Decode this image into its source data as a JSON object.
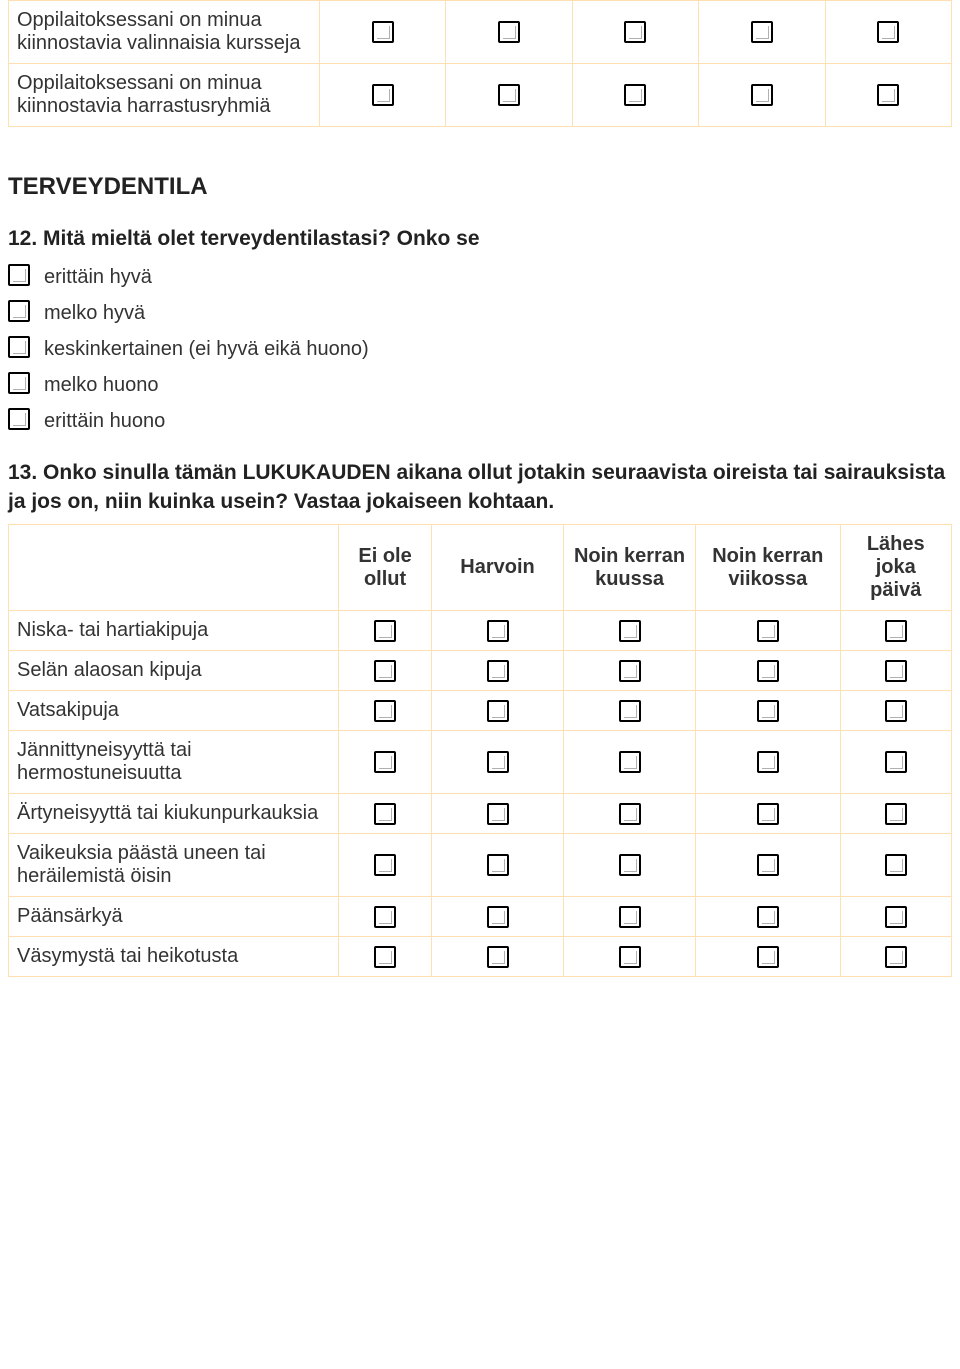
{
  "colors": {
    "border": "#ffe0b3",
    "text": "#333333",
    "heading": "#222222",
    "bg": "#ffffff"
  },
  "topTable": {
    "rows": [
      "Oppilaitoksessani on minua kiinnostavia valinnaisia kursseja",
      "Oppilaitoksessani on minua kiinnostavia harrastusryhmiä"
    ]
  },
  "sectionTitle": "TERVEYDENTILA",
  "q12": {
    "title": "12. Mitä mieltä olet terveydentilastasi? Onko se",
    "options": [
      "erittäin hyvä",
      "melko hyvä",
      "keskinkertainen (ei hyvä eikä huono)",
      "melko huono",
      "erittäin huono"
    ]
  },
  "q13": {
    "title": "13. Onko sinulla tämän LUKUKAUDEN aikana ollut jotakin seuraavista oireista tai sairauksista ja jos on, niin kuinka usein? Vastaa jokaiseen kohtaan.",
    "columns": [
      "Ei ole ollut",
      "Harvoin",
      "Noin kerran kuussa",
      "Noin kerran viikossa",
      "Lähes joka päivä"
    ],
    "rows": [
      "Niska- tai hartiakipuja",
      "Selän alaosan kipuja",
      "Vatsakipuja",
      "Jännittyneisyyttä tai hermostuneisuutta",
      "Ärtyneisyyttä tai kiukunpurkauksia",
      "Vaikeuksia päästä uneen tai heräilemistä öisin",
      "Päänsärkyä",
      "Väsymystä tai heikotusta"
    ]
  }
}
